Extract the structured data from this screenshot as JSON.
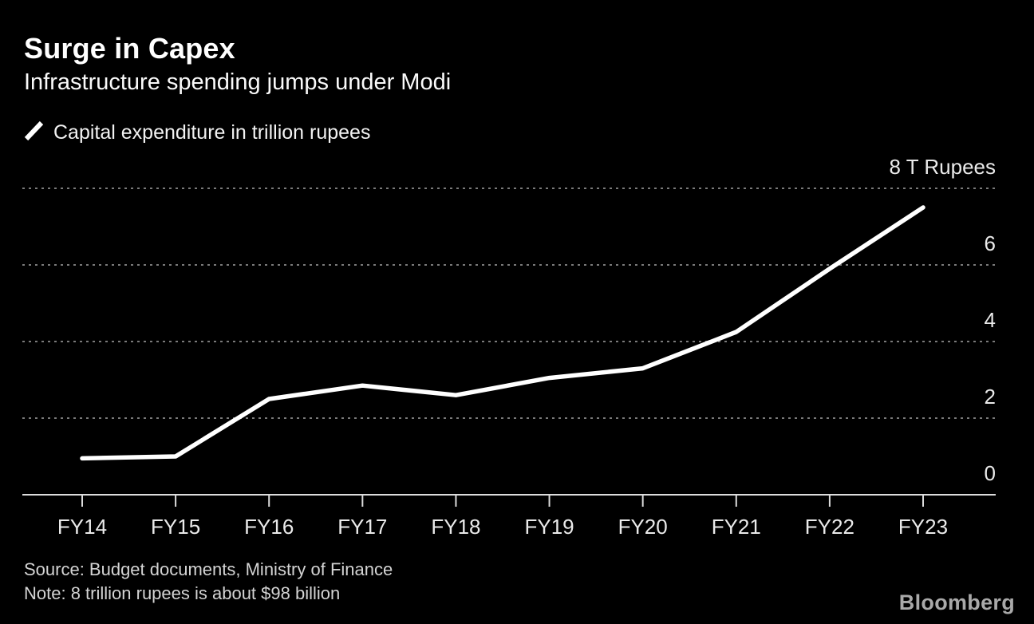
{
  "header": {
    "title": "Surge in Capex",
    "subtitle": "Infrastructure spending jumps under Modi"
  },
  "legend": {
    "label": "Capital expenditure in trillion rupees"
  },
  "chart_data": {
    "type": "line",
    "title": "Surge in Capex",
    "subtitle": "Infrastructure spending jumps under Modi",
    "series_label": "Capital expenditure in trillion rupees",
    "categories": [
      "FY14",
      "FY15",
      "FY16",
      "FY17",
      "FY18",
      "FY19",
      "FY20",
      "FY21",
      "FY22",
      "FY23"
    ],
    "values": [
      0.95,
      1.0,
      2.5,
      2.85,
      2.6,
      3.05,
      3.3,
      4.25,
      5.9,
      7.5
    ],
    "ylabel": "trillion rupees",
    "ylim": [
      0,
      8
    ],
    "y_ticks": [
      0,
      2,
      4,
      6,
      8
    ],
    "y_top_tick_label": "8 T Rupees",
    "grid": "horizontal dotted",
    "legend_position": "top-left",
    "line_color": "#ffffff",
    "grid_color": "#7a7a7a",
    "axis_color": "#dcdcdc",
    "background_color": "#000000"
  },
  "footer": {
    "source": "Source: Budget documents, Ministry of Finance",
    "note": "Note: 8 trillion rupees is about $98 billion",
    "brand": "Bloomberg"
  }
}
